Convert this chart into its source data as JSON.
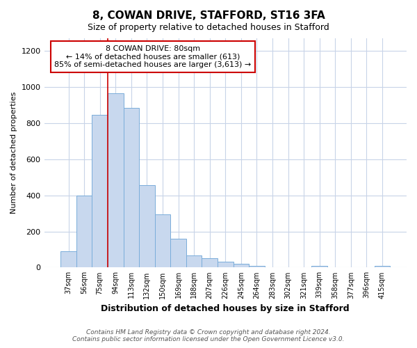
{
  "title": "8, COWAN DRIVE, STAFFORD, ST16 3FA",
  "subtitle": "Size of property relative to detached houses in Stafford",
  "xlabel": "Distribution of detached houses by size in Stafford",
  "ylabel": "Number of detached properties",
  "categories": [
    "37sqm",
    "56sqm",
    "75sqm",
    "94sqm",
    "113sqm",
    "132sqm",
    "150sqm",
    "169sqm",
    "188sqm",
    "207sqm",
    "226sqm",
    "245sqm",
    "264sqm",
    "283sqm",
    "302sqm",
    "321sqm",
    "339sqm",
    "358sqm",
    "377sqm",
    "396sqm",
    "415sqm"
  ],
  "values": [
    90,
    400,
    845,
    965,
    885,
    455,
    295,
    158,
    68,
    50,
    33,
    20,
    8,
    2,
    2,
    0,
    10,
    2,
    2,
    2,
    10
  ],
  "bar_color": "#c8d8ee",
  "bar_edge_color": "#7aadda",
  "annotation_box_color": "#ffffff",
  "annotation_box_edge": "#cc0000",
  "annotation_text": "8 COWAN DRIVE: 80sqm\n← 14% of detached houses are smaller (613)\n85% of semi-detached houses are larger (3,613) →",
  "vline_color": "#cc0000",
  "vline_pos": 2.5,
  "ylim": [
    0,
    1270
  ],
  "yticks": [
    0,
    200,
    400,
    600,
    800,
    1000,
    1200
  ],
  "footer_line1": "Contains HM Land Registry data © Crown copyright and database right 2024.",
  "footer_line2": "Contains public sector information licensed under the Open Government Licence v3.0.",
  "bg_color": "#ffffff",
  "plot_bg_color": "#ffffff",
  "grid_color": "#c8d4e8"
}
